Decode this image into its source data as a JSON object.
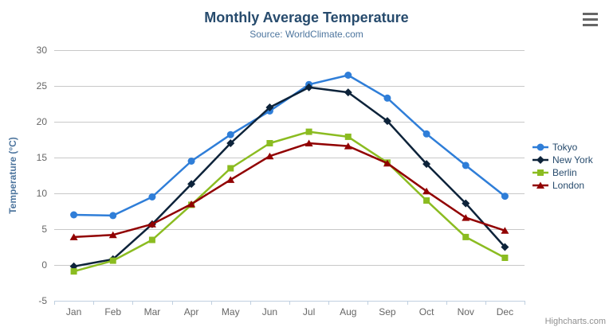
{
  "header": {
    "title": "Monthly Average Temperature",
    "subtitle": "Source: WorldClimate.com"
  },
  "credits": "Highcharts.com",
  "export_menu": {
    "icon": "hamburger-menu-icon"
  },
  "theme": {
    "background": "#ffffff",
    "title_color": "#274b6d",
    "subtitle_color": "#4d759e",
    "axis_label_color": "#666666",
    "axis_title_color": "#4d759e",
    "grid_color": "#c8c8c8",
    "axis_line_color": "#c0d0e0",
    "legend_text_color": "#274b6d",
    "credits_color": "#909090",
    "menu_icon_color": "#666666"
  },
  "chart_data": {
    "type": "line",
    "title": "Monthly Average Temperature",
    "subtitle": "Source: WorldClimate.com",
    "xlabel": "",
    "ylabel": "Temperature (°C)",
    "ylim": [
      -5,
      30
    ],
    "yticks": [
      -5,
      0,
      5,
      10,
      15,
      20,
      25,
      30
    ],
    "grid": true,
    "legend_position": "right",
    "categories": [
      "Jan",
      "Feb",
      "Mar",
      "Apr",
      "May",
      "Jun",
      "Jul",
      "Aug",
      "Sep",
      "Oct",
      "Nov",
      "Dec"
    ],
    "series": [
      {
        "name": "Tokyo",
        "color": "#2f7ed8",
        "marker": "circle",
        "values": [
          7.0,
          6.9,
          9.5,
          14.5,
          18.2,
          21.5,
          25.2,
          26.5,
          23.3,
          18.3,
          13.9,
          9.6
        ]
      },
      {
        "name": "New York",
        "color": "#0d233a",
        "marker": "diamond",
        "values": [
          -0.2,
          0.8,
          5.7,
          11.3,
          17.0,
          22.0,
          24.8,
          24.1,
          20.1,
          14.1,
          8.6,
          2.5
        ]
      },
      {
        "name": "Berlin",
        "color": "#8bbc21",
        "marker": "square",
        "values": [
          -0.9,
          0.6,
          3.5,
          8.4,
          13.5,
          17.0,
          18.6,
          17.9,
          14.3,
          9.0,
          3.9,
          1.0
        ]
      },
      {
        "name": "London",
        "color": "#910000",
        "marker": "triangle-up",
        "values": [
          3.9,
          4.2,
          5.7,
          8.5,
          11.9,
          15.2,
          17.0,
          16.6,
          14.2,
          10.3,
          6.6,
          4.8
        ]
      }
    ]
  }
}
